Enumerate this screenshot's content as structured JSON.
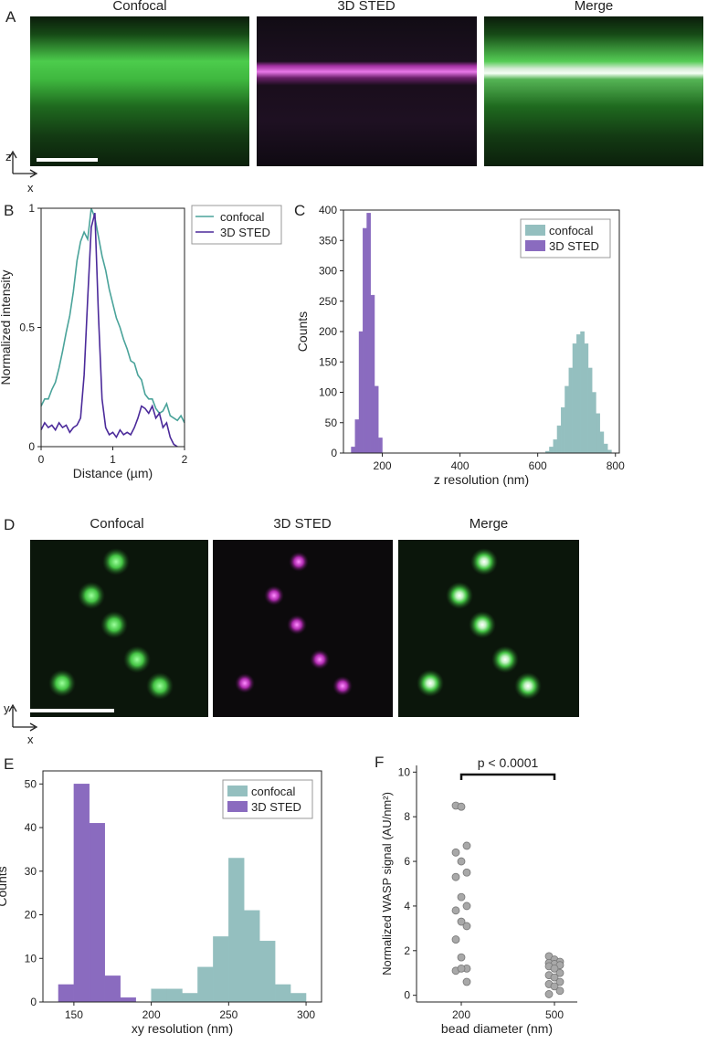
{
  "panel_a": {
    "label": "A",
    "titles": [
      "Confocal",
      "3D STED",
      "Merge"
    ],
    "axes": [
      "z",
      "x"
    ]
  },
  "panel_d": {
    "label": "D",
    "titles": [
      "Confocal",
      "3D STED",
      "Merge"
    ],
    "axes": [
      "y",
      "x"
    ]
  },
  "chart_data": [
    {
      "type": "line",
      "label": "B",
      "xlabel": "Distance (µm)",
      "ylabel": "Normalized intensity",
      "x": [
        0,
        0.05,
        0.1,
        0.15,
        0.2,
        0.25,
        0.3,
        0.35,
        0.4,
        0.45,
        0.5,
        0.55,
        0.6,
        0.65,
        0.7,
        0.75,
        0.8,
        0.85,
        0.9,
        0.95,
        1,
        1.05,
        1.1,
        1.15,
        1.2,
        1.25,
        1.3,
        1.35,
        1.4,
        1.45,
        1.5,
        1.55,
        1.6,
        1.65,
        1.7,
        1.75,
        1.8,
        1.85,
        1.9,
        1.95,
        2
      ],
      "series": [
        {
          "name": "confocal",
          "color": "#4aa39a",
          "values": [
            0.17,
            0.2,
            0.2,
            0.24,
            0.27,
            0.33,
            0.4,
            0.48,
            0.55,
            0.65,
            0.78,
            0.86,
            0.9,
            0.87,
            1,
            0.96,
            0.88,
            0.8,
            0.74,
            0.66,
            0.6,
            0.54,
            0.5,
            0.45,
            0.41,
            0.36,
            0.35,
            0.3,
            0.28,
            0.22,
            0.2,
            0.2,
            0.16,
            0.14,
            0.15,
            0.18,
            0.13,
            0.12,
            0.11,
            0.13,
            0.1
          ]
        },
        {
          "name": "3D STED",
          "color": "#4b2a9a",
          "values": [
            0.07,
            0.1,
            0.08,
            0.09,
            0.07,
            0.1,
            0.08,
            0.09,
            0.06,
            0.08,
            0.09,
            0.12,
            0.3,
            0.62,
            0.92,
            0.98,
            0.55,
            0.2,
            0.08,
            0.05,
            0.06,
            0.04,
            0.07,
            0.05,
            0.06,
            0.05,
            0.08,
            0.12,
            0.17,
            0.16,
            0.14,
            0.17,
            0.12,
            0.14,
            0.08,
            0.1,
            0.04,
            0.01,
            0,
            null,
            null
          ]
        }
      ],
      "xlim": [
        0,
        2
      ],
      "xticks": [
        0,
        1,
        2
      ],
      "ylim": [
        0,
        1
      ],
      "yticks": [
        0,
        0.5,
        1
      ],
      "legend": "outside right"
    },
    {
      "type": "histogram",
      "label": "C",
      "xlabel": "z resolution (nm)",
      "ylabel": "Counts",
      "series": [
        {
          "name": "confocal",
          "color": "#94bfbf",
          "bins": [
            620,
            630,
            640,
            650,
            660,
            670,
            680,
            690,
            700,
            710,
            720,
            730,
            740,
            750,
            760,
            770,
            780,
            790
          ],
          "values": [
            3,
            10,
            22,
            45,
            75,
            110,
            140,
            180,
            195,
            200,
            180,
            140,
            100,
            65,
            35,
            15,
            5
          ]
        },
        {
          "name": "3D STED",
          "color": "#8a6bbf",
          "bins": [
            120,
            130,
            140,
            150,
            160,
            170,
            180,
            190,
            200
          ],
          "values": [
            10,
            55,
            200,
            370,
            395,
            260,
            110,
            25
          ]
        }
      ],
      "xlim": [
        100,
        810
      ],
      "xticks": [
        200,
        400,
        600,
        800
      ],
      "ylim": [
        0,
        400
      ],
      "yticks": [
        0,
        50,
        100,
        150,
        200,
        250,
        300,
        350,
        400
      ],
      "legend": "upper right"
    },
    {
      "type": "histogram",
      "label": "E",
      "xlabel": "xy resolution (nm)",
      "ylabel": "Counts",
      "series": [
        {
          "name": "confocal",
          "color": "#94bfbf",
          "bins": [
            200,
            210,
            220,
            230,
            240,
            250,
            260,
            270,
            280,
            290,
            300
          ],
          "values": [
            3,
            3,
            2,
            8,
            15,
            33,
            21,
            14,
            4,
            2
          ]
        },
        {
          "name": "3D STED",
          "color": "#8a6bbf",
          "bins": [
            140,
            150,
            160,
            170,
            180,
            190
          ],
          "values": [
            4,
            50,
            41,
            6,
            1
          ]
        }
      ],
      "xlim": [
        130,
        310
      ],
      "xticks": [
        150,
        200,
        250,
        300
      ],
      "ylim": [
        0,
        53
      ],
      "yticks": [
        0,
        10,
        20,
        30,
        40,
        50
      ],
      "legend": "upper right"
    },
    {
      "type": "strip",
      "label": "F",
      "xlabel": "bead diameter (nm)",
      "ylabel": "Normalized WASP signal (AU/nm²)",
      "annotation": "p < 0.0001",
      "categories": [
        "200",
        "500"
      ],
      "color": "#a8a8a8",
      "values": [
        [
          8.5,
          8.45,
          6.7,
          6.4,
          6,
          5.5,
          5.3,
          4.4,
          4,
          3.8,
          3.3,
          3.1,
          2.5,
          1.7,
          1.2,
          1.1,
          1.2,
          0.6
        ],
        [
          1.75,
          1.6,
          1.5,
          1.45,
          1.4,
          1.35,
          1.3,
          1.2,
          1,
          0.9,
          0.8,
          0.6,
          0.5,
          0.4,
          0.2,
          0.05
        ]
      ],
      "ylim": [
        -0.3,
        10.3
      ],
      "yticks": [
        0,
        2,
        4,
        6,
        8,
        10
      ]
    }
  ]
}
